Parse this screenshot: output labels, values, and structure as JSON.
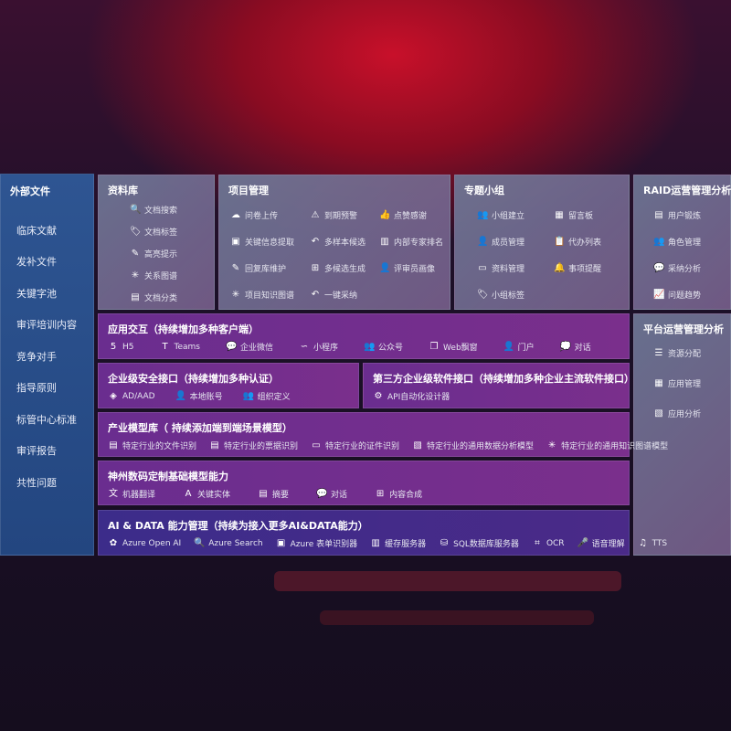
{
  "sidebar": {
    "title": "外部文件",
    "items": [
      "临床文献",
      "发补文件",
      "关键字池",
      "审评培训内容",
      "竞争对手",
      "指导原则",
      "标管中心标准",
      "审评报告",
      "共性问题"
    ]
  },
  "library": {
    "title": "资料库",
    "items": [
      {
        "icon": "doc-search-icon",
        "g": "🔍",
        "label": "文档搜索"
      },
      {
        "icon": "tag-icon",
        "g": "🏷",
        "label": "文档标签"
      },
      {
        "icon": "pen-icon",
        "g": "✎",
        "label": "高亮提示"
      },
      {
        "icon": "graph-icon",
        "g": "✳",
        "label": "关系图谱"
      },
      {
        "icon": "doc-class-icon",
        "g": "▤",
        "label": "文档分类"
      }
    ]
  },
  "project": {
    "title": "项目管理",
    "items": [
      {
        "icon": "cloud-upload-icon",
        "g": "☁",
        "label": "问卷上传"
      },
      {
        "icon": "alarm-icon",
        "g": "⚠",
        "label": "到期预警"
      },
      {
        "icon": "thumbs-up-icon",
        "g": "👍",
        "label": "点赞感谢"
      },
      {
        "icon": "extract-icon",
        "g": "▣",
        "label": "关键信息提取"
      },
      {
        "icon": "reply-icon",
        "g": "↶",
        "label": "多样本候选"
      },
      {
        "icon": "ranking-icon",
        "g": "▥",
        "label": "内部专家排名"
      },
      {
        "icon": "edit-icon",
        "g": "✎",
        "label": "回复库维护"
      },
      {
        "icon": "puzzle-icon",
        "g": "⊞",
        "label": "多候选生成"
      },
      {
        "icon": "user-icon",
        "g": "👤",
        "label": "评审员画像"
      },
      {
        "icon": "knowledge-graph-icon",
        "g": "✳",
        "label": "项目知识图谱"
      },
      {
        "icon": "reply-icon",
        "g": "↶",
        "label": "一键采纳"
      }
    ]
  },
  "group": {
    "title": "专题小组",
    "items": [
      {
        "icon": "group-icon",
        "g": "👥",
        "label": "小组建立"
      },
      {
        "icon": "bbs-icon",
        "g": "▦",
        "label": "留言板"
      },
      {
        "icon": "member-icon",
        "g": "👤",
        "label": "成员管理"
      },
      {
        "icon": "clipboard-icon",
        "g": "📋",
        "label": "代办列表"
      },
      {
        "icon": "folder-icon",
        "g": "▭",
        "label": "资料管理"
      },
      {
        "icon": "bell-icon",
        "g": "🔔",
        "label": "事项提醒"
      },
      {
        "icon": "tag-icon",
        "g": "🏷",
        "label": "小组标签"
      }
    ]
  },
  "raid": {
    "title": "RAID运营管理分析",
    "items": [
      {
        "icon": "id-card-icon",
        "g": "▤",
        "label": "用户锻炼"
      },
      {
        "icon": "roles-icon",
        "g": "👥",
        "label": "角色管理"
      },
      {
        "icon": "qa-icon",
        "g": "💬",
        "label": "采纳分析"
      },
      {
        "icon": "trend-icon",
        "g": "📈",
        "label": "问题趋势"
      }
    ]
  },
  "platform": {
    "title": "平台运营管理分析",
    "items": [
      {
        "icon": "list-icon",
        "g": "☰",
        "label": "资源分配"
      },
      {
        "icon": "apps-icon",
        "g": "▦",
        "label": "应用管理"
      },
      {
        "icon": "analysis-icon",
        "g": "▧",
        "label": "应用分析"
      }
    ]
  },
  "interaction": {
    "title": "应用交互（持续增加多种客户端）",
    "items": [
      {
        "icon": "html5-icon",
        "g": "5",
        "label": "H5"
      },
      {
        "icon": "teams-icon",
        "g": "T",
        "label": "Teams"
      },
      {
        "icon": "wecom-icon",
        "g": "💬",
        "label": "企业微信"
      },
      {
        "icon": "miniprogram-icon",
        "g": "∽",
        "label": "小程序"
      },
      {
        "icon": "official-account-icon",
        "g": "👥",
        "label": "公众号"
      },
      {
        "icon": "web-window-icon",
        "g": "❐",
        "label": "Web飘窗"
      },
      {
        "icon": "portal-icon",
        "g": "👤",
        "label": "门户"
      },
      {
        "icon": "chat-icon",
        "g": "💭",
        "label": "对话"
      }
    ]
  },
  "security": {
    "title": "企业级安全接口（持续增加多种认证）",
    "items": [
      {
        "icon": "ad-icon",
        "g": "◈",
        "label": "AD/AAD"
      },
      {
        "icon": "local-account-icon",
        "g": "👤",
        "label": "本地账号"
      },
      {
        "icon": "org-icon",
        "g": "👥",
        "label": "组织定义"
      }
    ]
  },
  "thirdparty": {
    "title": "第三方企业级软件接口（持续增加多种企业主流软件接口）",
    "items": [
      {
        "icon": "api-gear-icon",
        "g": "⚙",
        "label": "API自动化设计器"
      }
    ]
  },
  "industry": {
    "title": "产业模型库（ 持续添加端到端场景模型）",
    "items": [
      {
        "icon": "file-icon",
        "g": "▤",
        "label": "特定行业的文件识别"
      },
      {
        "icon": "receipt-icon",
        "g": "▤",
        "label": "特定行业的票据识别"
      },
      {
        "icon": "id-card-icon",
        "g": "▭",
        "label": "特定行业的证件识别"
      },
      {
        "icon": "data-analysis-icon",
        "g": "▧",
        "label": "特定行业的通用数据分析模型"
      },
      {
        "icon": "knowledge-graph-icon",
        "g": "✳",
        "label": "特定行业的通用知识图谱模型"
      }
    ]
  },
  "foundation": {
    "title": "神州数码定制基础模型能力",
    "items": [
      {
        "icon": "translate-icon",
        "g": "文",
        "label": "机器翻译"
      },
      {
        "icon": "entity-icon",
        "g": "A",
        "label": "关键实体"
      },
      {
        "icon": "summary-icon",
        "g": "▤",
        "label": "摘要"
      },
      {
        "icon": "chat-icon",
        "g": "💬",
        "label": "对话"
      },
      {
        "icon": "compose-icon",
        "g": "⊞",
        "label": "内容合成"
      }
    ]
  },
  "aidata": {
    "title": "AI & DATA 能力管理（持续为接入更多AI&DATA能力）",
    "items": [
      {
        "icon": "openai-icon",
        "g": "✿",
        "label": "Azure Open AI"
      },
      {
        "icon": "search-icon",
        "g": "🔍",
        "label": "Azure Search"
      },
      {
        "icon": "form-recognizer-icon",
        "g": "▣",
        "label": "Azure 表单识别器"
      },
      {
        "icon": "cache-server-icon",
        "g": "▥",
        "label": "缓存服务器"
      },
      {
        "icon": "sql-icon",
        "g": "⛁",
        "label": "SQL数据库服务器"
      },
      {
        "icon": "ocr-icon",
        "g": "⌗",
        "label": "OCR"
      },
      {
        "icon": "speech-icon",
        "g": "🎤",
        "label": "语音理解"
      },
      {
        "icon": "tts-icon",
        "g": "♫",
        "label": "TTS"
      }
    ]
  }
}
